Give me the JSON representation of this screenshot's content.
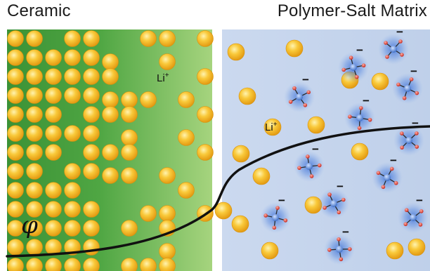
{
  "titles": {
    "left": "Ceramic",
    "right": "Polymer-Salt Matrix"
  },
  "labels": {
    "ceramic_ion": {
      "base": "Li",
      "charge": "+"
    },
    "polymer_ion": {
      "base": "Li",
      "charge": "+"
    },
    "potential_symbol": "φ",
    "anion_charge": "−"
  },
  "colors": {
    "ceramic_dark": "#3f9a3a",
    "ceramic_light": "#9fd07a",
    "polymer_bg": "#c9d8ee",
    "li_ion": "#f5b41c",
    "anion_center": "#4f7fd0",
    "anion_arm": "#d8342a",
    "curve": "#111111"
  },
  "icons": {
    "li_ion": "sphere",
    "anion": "tetrahedral-anion"
  }
}
